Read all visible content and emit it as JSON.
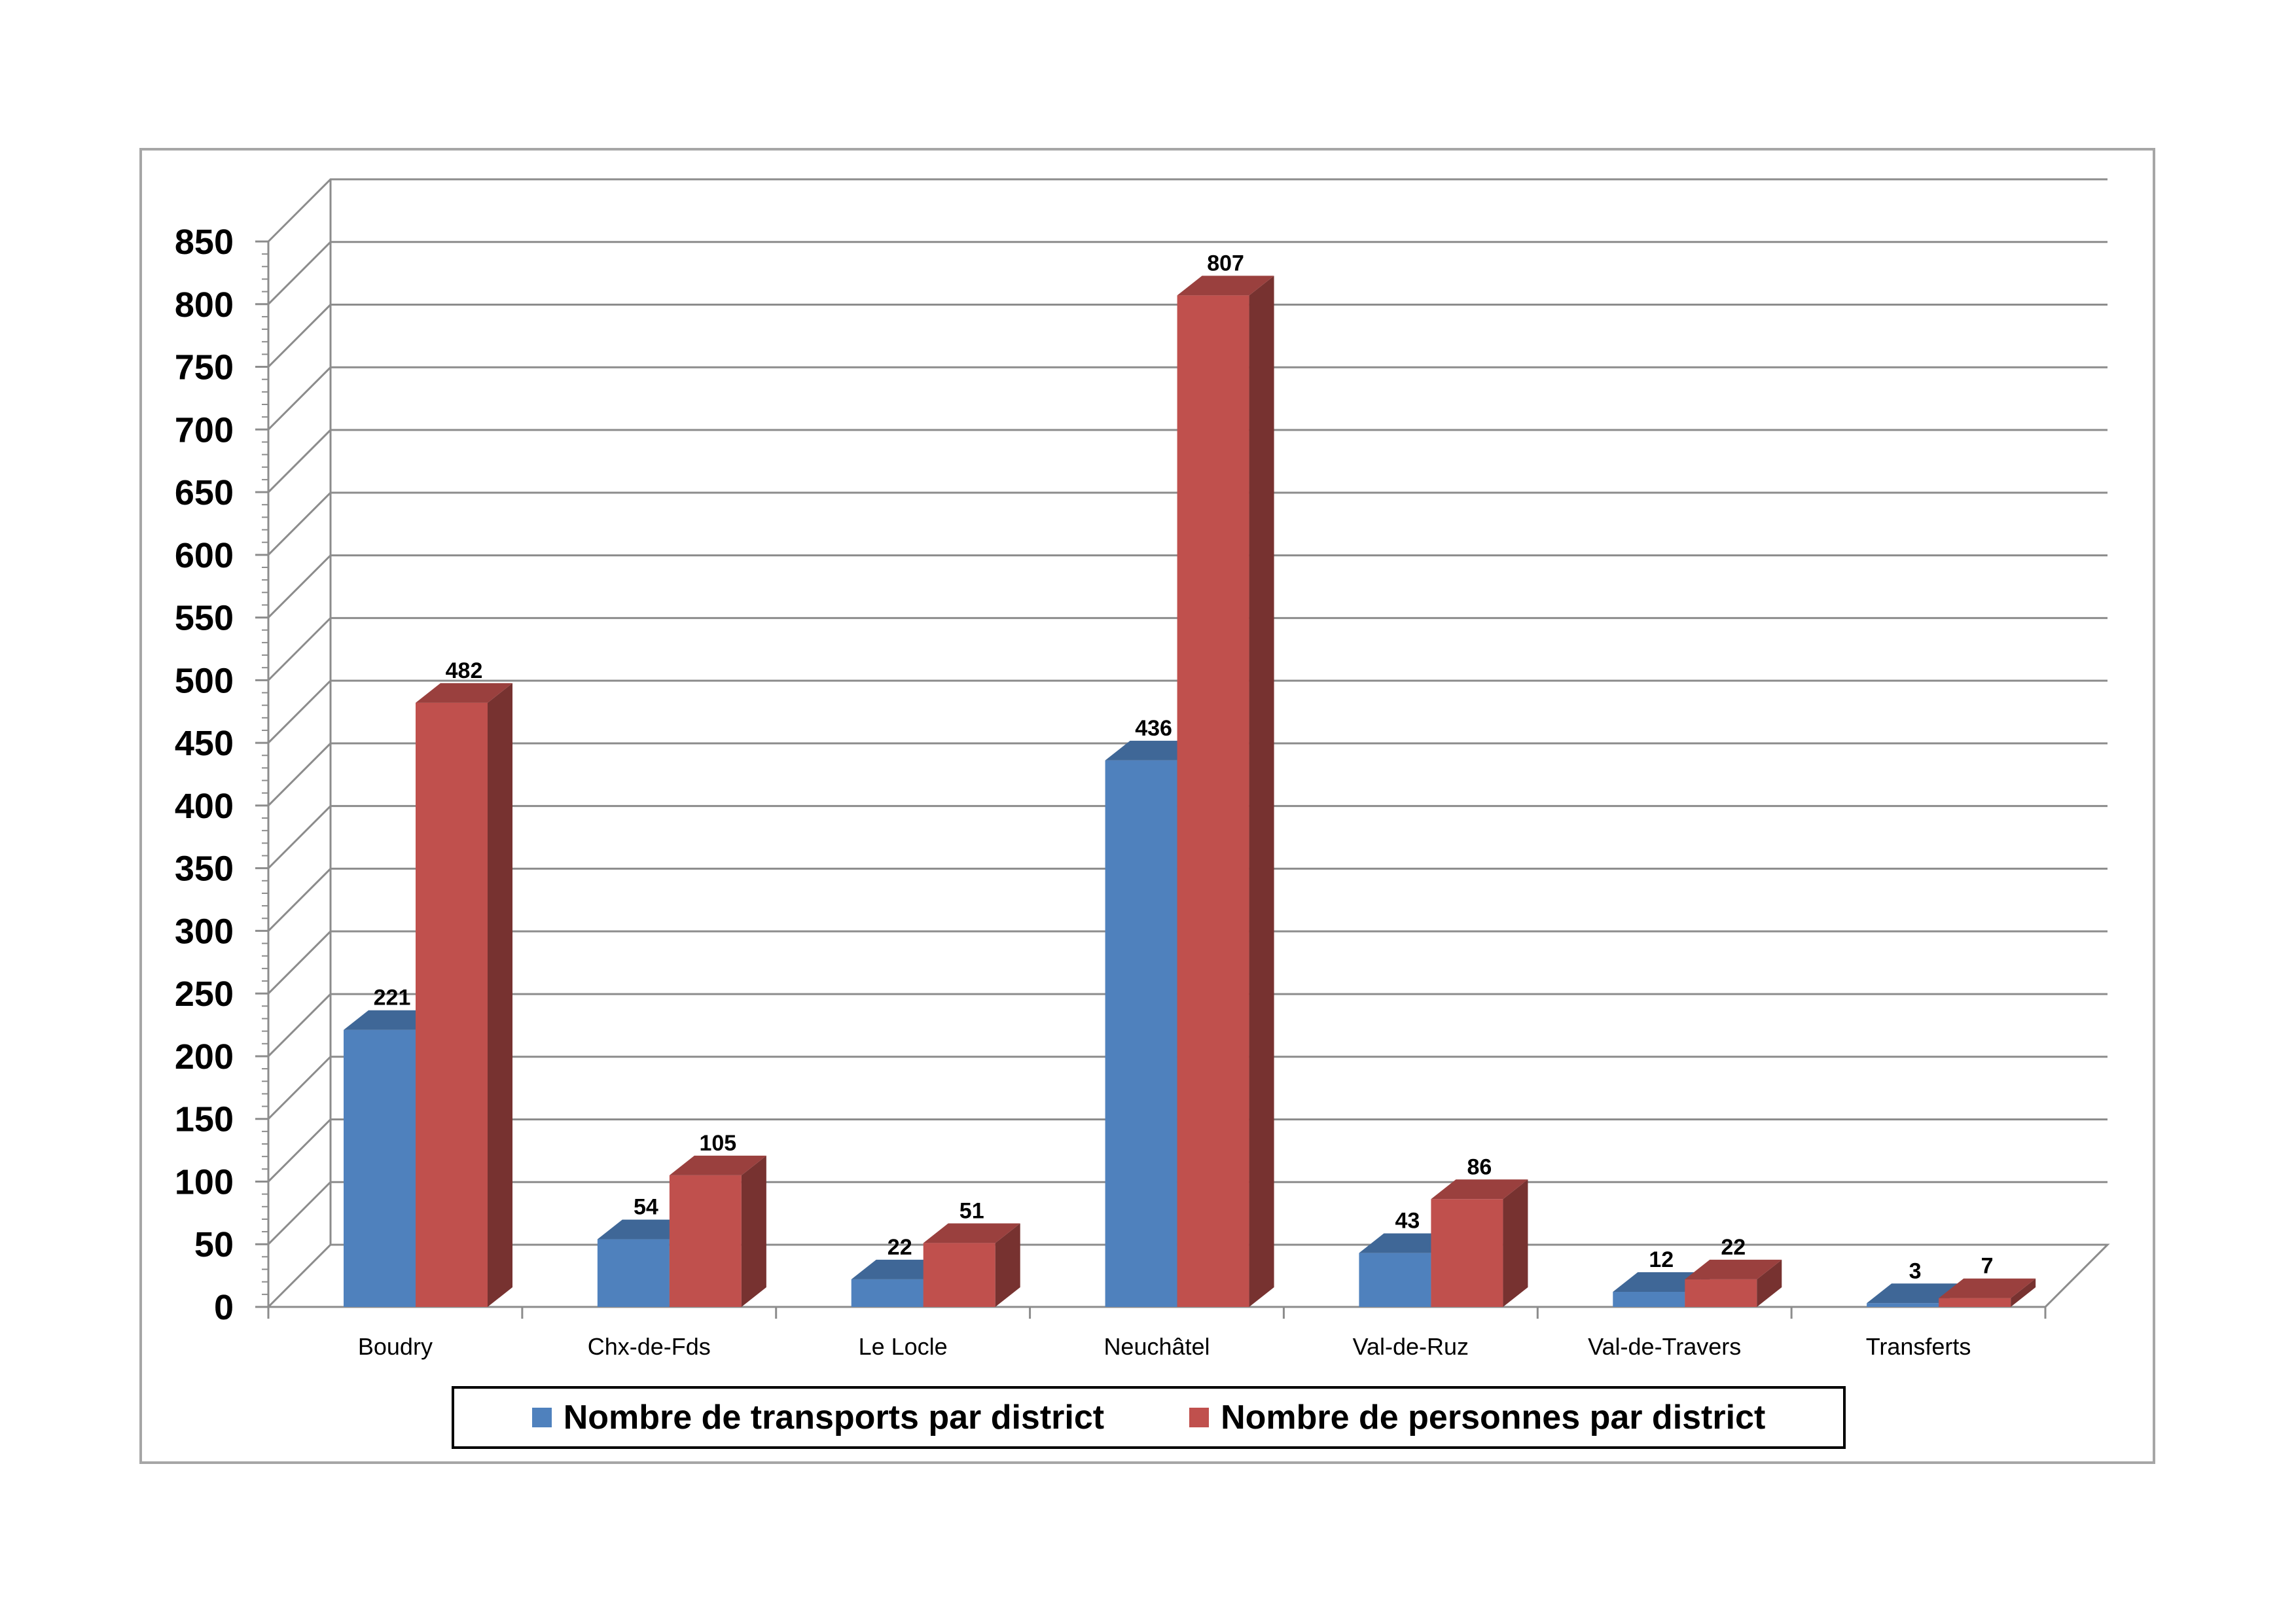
{
  "chart_data": {
    "type": "bar",
    "categories": [
      "Boudry",
      "Chx-de-Fds",
      "Le Locle",
      "Neuchâtel",
      "Val-de-Ruz",
      "Val-de-Travers",
      "Transferts"
    ],
    "series": [
      {
        "name": "Nombre de transports par district",
        "values": [
          221,
          54,
          22,
          436,
          43,
          12,
          3
        ],
        "color": "#4f81bd"
      },
      {
        "name": "Nombre de personnes par district",
        "values": [
          482,
          105,
          51,
          807,
          86,
          22,
          7
        ],
        "color": "#c0504d"
      }
    ],
    "ylim": [
      0,
      850
    ],
    "yticks": [
      0,
      50,
      100,
      150,
      200,
      250,
      300,
      350,
      400,
      450,
      500,
      550,
      600,
      650,
      700,
      750,
      800,
      850
    ],
    "grid": true,
    "three_d": true,
    "legend_position": "bottom",
    "data_labels": true
  }
}
